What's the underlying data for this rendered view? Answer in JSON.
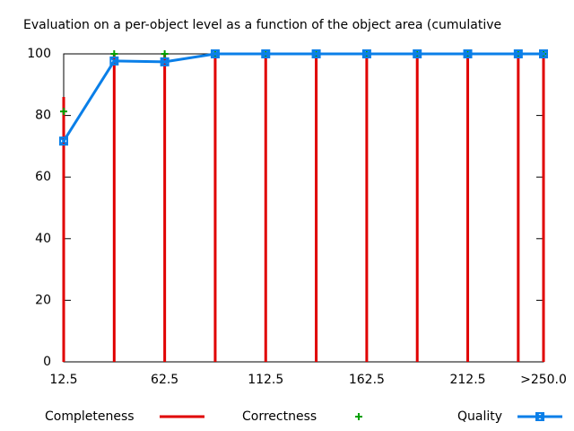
{
  "chart_data": {
    "type": "line",
    "title": "Evaluation on a per-object level as a function of the object area (cumulative",
    "x": [
      12.5,
      37.5,
      62.5,
      87.5,
      112.5,
      137.5,
      162.5,
      187.5,
      212.5,
      237.5,
      250
    ],
    "xlim": [
      12.5,
      250
    ],
    "xticks": [
      12.5,
      62.5,
      112.5,
      162.5,
      212.5,
      {
        "value": 250,
        "label": ">250.0"
      }
    ],
    "ylim": [
      0,
      100
    ],
    "yticks": [
      0,
      20,
      40,
      60,
      80,
      100
    ],
    "legend": "bottom",
    "series": [
      {
        "name": "Completeness",
        "color": "#e00000",
        "style": "impulses",
        "values": [
          86,
          100,
          100,
          100,
          100,
          100,
          100,
          100,
          100,
          100,
          100
        ]
      },
      {
        "name": "Correctness",
        "color": "#00a000",
        "style": "points",
        "values": [
          81.3,
          100,
          100,
          100,
          100,
          100,
          100,
          100,
          100,
          100,
          100
        ]
      },
      {
        "name": "Quality",
        "color": "#0a7fe8",
        "style": "linespoints",
        "values": [
          71.7,
          97.7,
          97.4,
          100,
          100,
          100,
          100,
          100,
          100,
          100,
          100
        ]
      }
    ]
  }
}
